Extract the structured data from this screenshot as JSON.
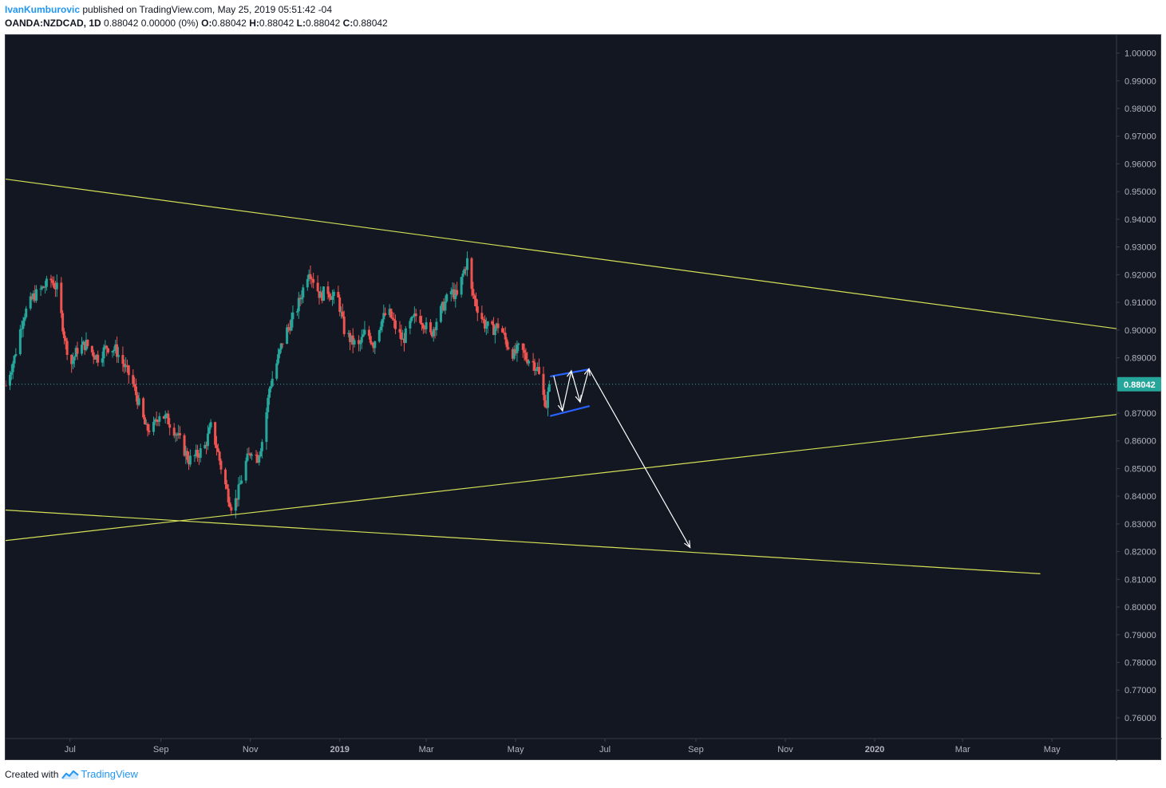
{
  "header": {
    "author": "IvanKumburovic",
    "published_text": "published on TradingView.com, May 25, 2019 05:51:42 -04",
    "symbol": "OANDA:NZDCAD, 1D",
    "quote_main": "0.88042 0.00000 (0%)",
    "o_label": "O:",
    "o_value": "0.88042",
    "h_label": "H:",
    "h_value": "0.88042",
    "l_label": "L:",
    "l_value": "0.88042",
    "c_label": "C:",
    "c_value": "0.88042"
  },
  "footer": {
    "created_with": "Created with",
    "brand": "TradingView",
    "brand_icon": "tradingview-logo-icon"
  },
  "colors": {
    "background": "#131722",
    "up_candle": "#26a69a",
    "down_candle": "#ef5350",
    "trendline": "#d4e157",
    "channel": "#2962ff",
    "arrow": "#ffffff",
    "price_line": "#26a69a",
    "price_label_bg": "#26a69a",
    "axis_text": "#b2b5be"
  },
  "chart_data": {
    "type": "candlestick",
    "symbol": "OANDA:NZDCAD",
    "interval": "1D",
    "y_axis": {
      "position": "right",
      "range": [
        0.7525,
        1.0065
      ],
      "ticks": [
        "1.00000",
        "0.99000",
        "0.98000",
        "0.97000",
        "0.96000",
        "0.95000",
        "0.94000",
        "0.93000",
        "0.92000",
        "0.91000",
        "0.90000",
        "0.89000",
        "0.88000",
        "0.87000",
        "0.86000",
        "0.85000",
        "0.84000",
        "0.83000",
        "0.82000",
        "0.81000",
        "0.80000",
        "0.79000",
        "0.78000",
        "0.77000",
        "0.76000"
      ]
    },
    "x_axis": {
      "range": [
        "2018-05-18",
        "2020-06-14"
      ],
      "ticks": [
        {
          "date": "2018-07-01",
          "label": "Jul",
          "bold": false
        },
        {
          "date": "2018-09-01",
          "label": "Sep",
          "bold": false
        },
        {
          "date": "2018-11-01",
          "label": "Nov",
          "bold": false
        },
        {
          "date": "2019-01-01",
          "label": "2019",
          "bold": true
        },
        {
          "date": "2019-03-01",
          "label": "Mar",
          "bold": false
        },
        {
          "date": "2019-05-01",
          "label": "May",
          "bold": false
        },
        {
          "date": "2019-07-01",
          "label": "Jul",
          "bold": false
        },
        {
          "date": "2019-09-01",
          "label": "Sep",
          "bold": false
        },
        {
          "date": "2019-11-01",
          "label": "Nov",
          "bold": false
        },
        {
          "date": "2020-01-01",
          "label": "2020",
          "bold": true
        },
        {
          "date": "2020-03-01",
          "label": "Mar",
          "bold": false
        },
        {
          "date": "2020-05-01",
          "label": "May",
          "bold": false
        }
      ]
    },
    "last_price": 0.88042,
    "last_price_label": "0.88042",
    "price_path": [
      [
        "2018-05-18",
        0.88
      ],
      [
        "2018-05-24",
        0.89
      ],
      [
        "2018-05-30",
        0.905
      ],
      [
        "2018-06-06",
        0.912
      ],
      [
        "2018-06-12",
        0.915
      ],
      [
        "2018-06-18",
        0.918
      ],
      [
        "2018-06-22",
        0.915
      ],
      [
        "2018-06-28",
        0.895
      ],
      [
        "2018-07-02",
        0.888
      ],
      [
        "2018-07-06",
        0.893
      ],
      [
        "2018-07-12",
        0.895
      ],
      [
        "2018-07-16",
        0.892
      ],
      [
        "2018-07-20",
        0.89
      ],
      [
        "2018-07-26",
        0.894
      ],
      [
        "2018-08-01",
        0.893
      ],
      [
        "2018-08-06",
        0.888
      ],
      [
        "2018-08-12",
        0.882
      ],
      [
        "2018-08-16",
        0.875
      ],
      [
        "2018-08-22",
        0.864
      ],
      [
        "2018-08-27",
        0.865
      ],
      [
        "2018-08-31",
        0.87
      ],
      [
        "2018-09-05",
        0.868
      ],
      [
        "2018-09-10",
        0.864
      ],
      [
        "2018-09-14",
        0.86
      ],
      [
        "2018-09-20",
        0.853
      ],
      [
        "2018-09-26",
        0.855
      ],
      [
        "2018-10-01",
        0.858
      ],
      [
        "2018-10-05",
        0.865
      ],
      [
        "2018-10-09",
        0.858
      ],
      [
        "2018-10-13",
        0.848
      ],
      [
        "2018-10-17",
        0.84
      ],
      [
        "2018-10-20",
        0.835
      ],
      [
        "2018-10-24",
        0.842
      ],
      [
        "2018-10-28",
        0.851
      ],
      [
        "2018-11-02",
        0.857
      ],
      [
        "2018-11-06",
        0.854
      ],
      [
        "2018-11-10",
        0.862
      ],
      [
        "2018-11-14",
        0.879
      ],
      [
        "2018-11-19",
        0.888
      ],
      [
        "2018-11-24",
        0.898
      ],
      [
        "2018-11-29",
        0.903
      ],
      [
        "2018-12-03",
        0.908
      ],
      [
        "2018-12-07",
        0.915
      ],
      [
        "2018-12-11",
        0.922
      ],
      [
        "2018-12-15",
        0.917
      ],
      [
        "2018-12-19",
        0.912
      ],
      [
        "2018-12-23",
        0.915
      ],
      [
        "2018-12-27",
        0.912
      ],
      [
        "2018-12-31",
        0.911
      ],
      [
        "2019-01-04",
        0.9
      ],
      [
        "2019-01-09",
        0.896
      ],
      [
        "2019-01-14",
        0.894
      ],
      [
        "2019-01-19",
        0.9
      ],
      [
        "2019-01-24",
        0.895
      ],
      [
        "2019-01-29",
        0.903
      ],
      [
        "2019-02-03",
        0.907
      ],
      [
        "2019-02-08",
        0.901
      ],
      [
        "2019-02-13",
        0.896
      ],
      [
        "2019-02-18",
        0.902
      ],
      [
        "2019-02-23",
        0.906
      ],
      [
        "2019-02-28",
        0.902
      ],
      [
        "2019-03-04",
        0.898
      ],
      [
        "2019-03-09",
        0.905
      ],
      [
        "2019-03-14",
        0.91
      ],
      [
        "2019-03-18",
        0.914
      ],
      [
        "2019-03-22",
        0.912
      ],
      [
        "2019-03-26",
        0.92
      ],
      [
        "2019-03-29",
        0.925
      ],
      [
        "2019-04-01",
        0.914
      ],
      [
        "2019-04-05",
        0.908
      ],
      [
        "2019-04-10",
        0.902
      ],
      [
        "2019-04-15",
        0.9
      ],
      [
        "2019-04-20",
        0.902
      ],
      [
        "2019-04-25",
        0.895
      ],
      [
        "2019-04-30",
        0.891
      ],
      [
        "2019-05-04",
        0.894
      ],
      [
        "2019-05-08",
        0.89
      ],
      [
        "2019-05-12",
        0.889
      ],
      [
        "2019-05-16",
        0.886
      ],
      [
        "2019-05-20",
        0.876
      ],
      [
        "2019-05-22",
        0.873
      ],
      [
        "2019-05-24",
        0.8804
      ]
    ],
    "annotations": {
      "trendlines": [
        {
          "from": [
            "2018-05-18",
            0.9545
          ],
          "to": [
            "2020-06-14",
            0.9005
          ]
        },
        {
          "from": [
            "2018-05-18",
            0.824
          ],
          "to": [
            "2020-06-14",
            0.8695
          ]
        },
        {
          "from": [
            "2018-05-18",
            0.835
          ],
          "to": [
            "2020-04-23",
            0.812
          ]
        }
      ],
      "channel": [
        {
          "from": [
            "2019-05-25",
            0.8833
          ],
          "to": [
            "2019-06-20",
            0.8858
          ]
        },
        {
          "from": [
            "2019-05-25",
            0.869
          ],
          "to": [
            "2019-06-20",
            0.8725
          ]
        }
      ],
      "zigzag": [
        [
          "2019-05-27",
          0.8835
        ],
        [
          "2019-06-02",
          0.8708
        ],
        [
          "2019-06-08",
          0.8853
        ],
        [
          "2019-06-14",
          0.874
        ],
        [
          "2019-06-20",
          0.886
        ]
      ],
      "projection_arrow": {
        "from": [
          "2019-06-20",
          0.886
        ],
        "to": [
          "2019-08-28",
          0.8215
        ]
      }
    }
  }
}
